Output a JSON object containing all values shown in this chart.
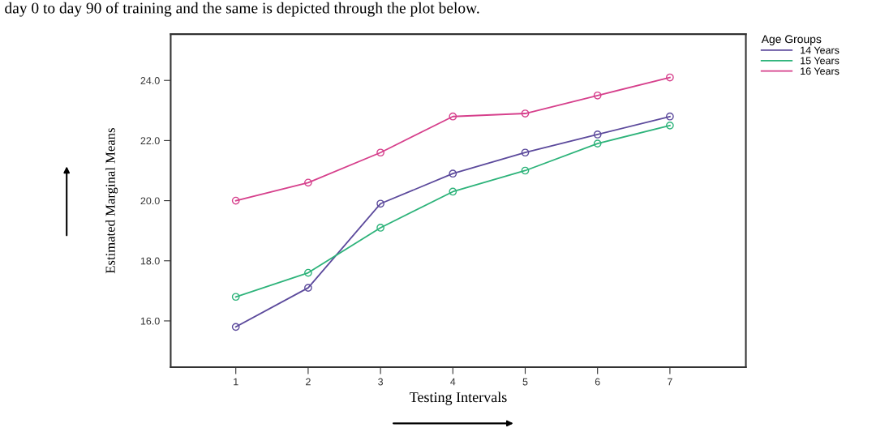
{
  "chart_data": {
    "type": "line",
    "xlabel": "Testing Intervals",
    "ylabel": "Estimated Marginal Means",
    "legend_title": "Age Groups",
    "annotations": [
      "day 0 to day 90 of training and the same is depicted through the plot below."
    ],
    "x": [
      1,
      2,
      3,
      4,
      5,
      6,
      7
    ],
    "series": [
      {
        "name": "14 Years",
        "color": "#5c4a9c",
        "values": [
          15.8,
          17.1,
          19.9,
          20.9,
          21.6,
          22.2,
          22.8
        ]
      },
      {
        "name": "15 Years",
        "color": "#2db37a",
        "values": [
          16.8,
          17.6,
          19.1,
          20.3,
          21.0,
          21.9,
          22.5
        ]
      },
      {
        "name": "16 Years",
        "color": "#d6408c",
        "values": [
          20.0,
          20.6,
          21.6,
          22.8,
          22.9,
          23.5,
          24.1
        ]
      }
    ],
    "xlim": [
      0.1,
      8.05
    ],
    "ylim": [
      14.46,
      25.54
    ],
    "xticks": [
      1,
      2,
      3,
      4,
      5,
      6,
      7
    ],
    "yticks": [
      {
        "value": 16,
        "label": "16.0"
      },
      {
        "value": 18,
        "label": "18.0"
      },
      {
        "value": 20,
        "label": "20.0"
      },
      {
        "value": 22,
        "label": "22.0"
      },
      {
        "value": 24,
        "label": "24.0"
      }
    ],
    "marker": "circle",
    "line_style": "solid",
    "grid": false,
    "legend": "top right"
  }
}
